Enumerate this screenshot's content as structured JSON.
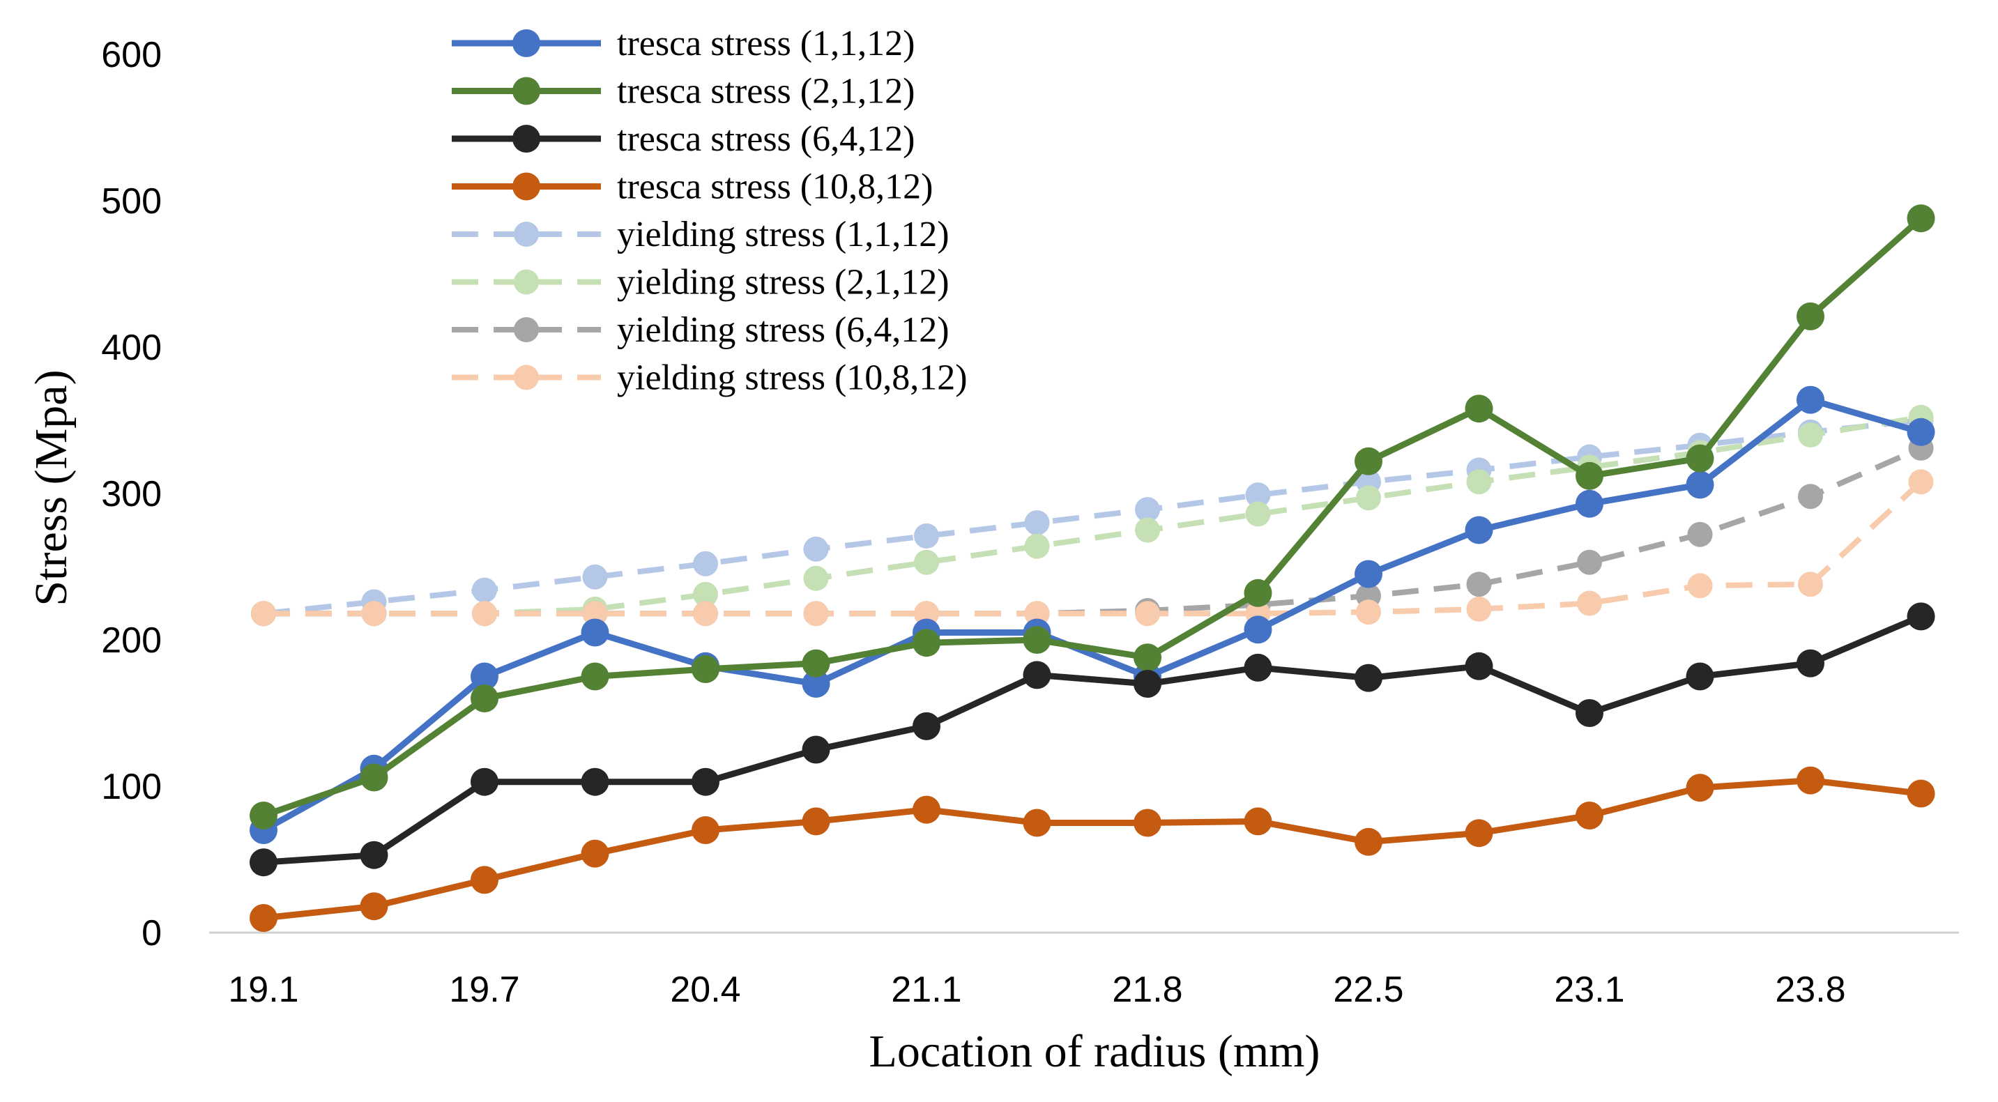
{
  "chart_data": {
    "type": "line",
    "title": "",
    "xlabel": "Location of radius (mm)",
    "ylabel": "Stress (Mpa)",
    "ylim": [
      0,
      600
    ],
    "yticks": [
      0,
      100,
      200,
      300,
      400,
      500,
      600
    ],
    "x_tick_labels": [
      "19.1",
      "19.7",
      "20.4",
      "21.1",
      "21.8",
      "22.5",
      "23.1",
      "23.8"
    ],
    "x_tick_every": 2,
    "grid": false,
    "legend_position": "top-center",
    "series": [
      {
        "name": "tresca stress (1,1,12)",
        "style": "solid",
        "color": "#4472C4",
        "values": [
          70,
          112,
          175,
          205,
          182,
          170,
          205,
          205,
          175,
          207,
          245,
          275,
          293,
          306,
          364,
          342
        ]
      },
      {
        "name": "tresca stress (2,1,12)",
        "style": "solid",
        "color": "#548235",
        "values": [
          80,
          106,
          160,
          175,
          180,
          184,
          198,
          200,
          188,
          232,
          322,
          358,
          312,
          324,
          421,
          488
        ]
      },
      {
        "name": "tresca stress (6,4,12)",
        "style": "solid",
        "color": "#262626",
        "values": [
          48,
          53,
          103,
          103,
          103,
          125,
          141,
          176,
          170,
          181,
          174,
          182,
          150,
          175,
          184,
          216
        ]
      },
      {
        "name": "tresca stress (10,8,12)",
        "style": "solid",
        "color": "#C55A11",
        "values": [
          10,
          18,
          36,
          54,
          70,
          76,
          84,
          75,
          75,
          76,
          62,
          68,
          80,
          99,
          104,
          95
        ]
      },
      {
        "name": "yielding stress (1,1,12)",
        "style": "dashed",
        "color": "#B4C7E7",
        "values": [
          218,
          226,
          234,
          243,
          252,
          262,
          271,
          280,
          289,
          299,
          308,
          316,
          325,
          333,
          342,
          350
        ]
      },
      {
        "name": "yielding stress (2,1,12)",
        "style": "dashed",
        "color": "#C5E0B4",
        "values": [
          218,
          218,
          218,
          221,
          231,
          242,
          253,
          264,
          275,
          286,
          297,
          308,
          318,
          328,
          340,
          352
        ]
      },
      {
        "name": "yielding stress (6,4,12)",
        "style": "dashed",
        "color": "#A6A6A6",
        "values": [
          218,
          218,
          218,
          218,
          218,
          218,
          218,
          218,
          220,
          224,
          230,
          238,
          253,
          272,
          298,
          331
        ]
      },
      {
        "name": "yielding stress (10,8,12)",
        "style": "dashed",
        "color": "#F8CBAD",
        "values": [
          218,
          218,
          218,
          218,
          218,
          218,
          218,
          218,
          218,
          218,
          219,
          221,
          225,
          237,
          238,
          308
        ]
      }
    ]
  }
}
